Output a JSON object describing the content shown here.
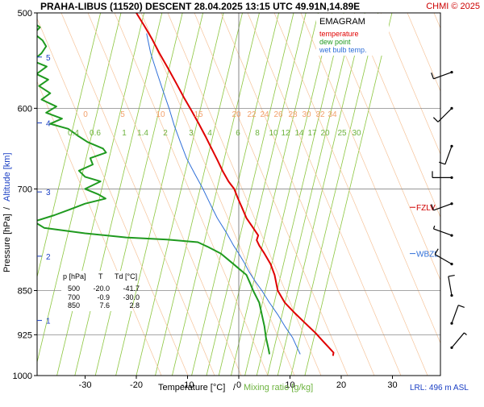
{
  "header": {
    "title": "PRAHA-LIBUS (11520)   DESCENT   28.04.2025 13:15 UTC  49.91N,14.89E",
    "copyright": "CHMI © 2025"
  },
  "legend": {
    "title": "EMAGRAM",
    "items": [
      {
        "label": "temperature",
        "color": "#e00000"
      },
      {
        "label": "dew point",
        "color": "#1f9a1f"
      },
      {
        "label": "wet bulb temp.",
        "color": "#2f6fd8"
      }
    ]
  },
  "axes": {
    "x_label_temp": "Temperature [°C]",
    "x_label_sep": "/",
    "x_label_mix": "Mixing ratio [g/kg]",
    "y_label_pressure": "Pressure [hPa]",
    "y_label_sep": "/",
    "y_label_alt": "Altitude [km]",
    "lrl": "LRL: 496 m ASL",
    "fzlv": "FZLV",
    "wbzl": "WBZL"
  },
  "table": {
    "headers": [
      "p [hPa]",
      "T",
      "Td [°C]"
    ],
    "rows": [
      [
        "500",
        "-20.0",
        "-41.7"
      ],
      [
        "700",
        "-0.9",
        "-30.0"
      ],
      [
        "850",
        "7.6",
        "2.8"
      ]
    ]
  },
  "chart_data": {
    "type": "line",
    "title": "PRAHA-LIBUS (11520)   DESCENT   28.04.2025 13:15 UTC  49.91N,14.89E",
    "xlabel": "Temperature [°C]  /  Mixing ratio [g/kg]",
    "ylabel": "Pressure [hPa]  /  Altitude [km]",
    "xlim": [
      -40,
      32
    ],
    "ylim": [
      1000,
      500
    ],
    "y_log": true,
    "x_ticks": [
      -30,
      -20,
      -10,
      0,
      10,
      20,
      30
    ],
    "y_ticks": [
      500,
      600,
      700,
      850,
      925,
      1000
    ],
    "altitude_ticks": [
      {
        "km": 5,
        "p": 544
      },
      {
        "km": 4,
        "p": 617
      },
      {
        "km": 3,
        "p": 704
      },
      {
        "km": 2,
        "p": 796
      },
      {
        "km": 1,
        "p": 900
      }
    ],
    "mixing_ratio_labels": [
      "0.4",
      "0.6",
      "1",
      "1.4",
      "2",
      "3",
      "4",
      "6",
      "8",
      "10",
      "12",
      "14",
      "17",
      "20",
      "25",
      "30"
    ],
    "potential_temp_labels": [
      "0",
      "5",
      "10",
      "15",
      "20",
      "22",
      "24",
      "26",
      "28",
      "30",
      "32",
      "34"
    ],
    "markers": [
      {
        "name": "FZLV",
        "p": 725
      },
      {
        "name": "WBZL",
        "p": 792
      }
    ],
    "series": [
      {
        "name": "temperature",
        "color": "#e00000",
        "points": [
          [
            -20.0,
            500
          ],
          [
            -18.5,
            512
          ],
          [
            -17,
            525
          ],
          [
            -15.5,
            540
          ],
          [
            -13.8,
            556
          ],
          [
            -12.2,
            572
          ],
          [
            -10.7,
            588
          ],
          [
            -9.2,
            603
          ],
          [
            -7.8,
            618
          ],
          [
            -6.5,
            633
          ],
          [
            -5.3,
            648
          ],
          [
            -4.2,
            662
          ],
          [
            -3.1,
            677
          ],
          [
            -2.0,
            690
          ],
          [
            -0.9,
            700
          ],
          [
            -0.2,
            712
          ],
          [
            0.6,
            725
          ],
          [
            1.5,
            740
          ],
          [
            2.8,
            754
          ],
          [
            3.8,
            765
          ],
          [
            3.5,
            772
          ],
          [
            4.0,
            780
          ],
          [
            5.0,
            792
          ],
          [
            6.2,
            808
          ],
          [
            7.0,
            825
          ],
          [
            7.6,
            850
          ],
          [
            9.0,
            870
          ],
          [
            11.0,
            888
          ],
          [
            13.0,
            905
          ],
          [
            15.0,
            922
          ],
          [
            16.5,
            937
          ],
          [
            17.5,
            947
          ],
          [
            18.5,
            957
          ],
          [
            18.4,
            963
          ]
        ]
      },
      {
        "name": "dew point",
        "color": "#1f9a1f",
        "points": [
          [
            -41.7,
            500
          ],
          [
            -40.5,
            508
          ],
          [
            -38.8,
            514
          ],
          [
            -40.0,
            520
          ],
          [
            -38.3,
            527
          ],
          [
            -37.6,
            533
          ],
          [
            -38.5,
            540
          ],
          [
            -40.2,
            548
          ],
          [
            -37.5,
            554
          ],
          [
            -39.5,
            562
          ],
          [
            -37.2,
            568
          ],
          [
            -39.0,
            575
          ],
          [
            -36.8,
            583
          ],
          [
            -38.5,
            590
          ],
          [
            -35.6,
            598
          ],
          [
            -37.6,
            605
          ],
          [
            -34.5,
            612
          ],
          [
            -36.8,
            618
          ],
          [
            -33.3,
            624
          ],
          [
            -31.5,
            632
          ],
          [
            -29.5,
            640
          ],
          [
            -26.5,
            648
          ],
          [
            -25.9,
            653
          ],
          [
            -29.0,
            660
          ],
          [
            -28.5,
            668
          ],
          [
            -31.2,
            676
          ],
          [
            -30.0,
            684
          ],
          [
            -27.0,
            690
          ],
          [
            -30.0,
            700
          ],
          [
            -27.5,
            707
          ],
          [
            -26.0,
            713
          ],
          [
            -30.0,
            720
          ],
          [
            -33.0,
            728
          ],
          [
            -36.0,
            736
          ],
          [
            -40.0,
            745
          ],
          [
            -38.0,
            754
          ],
          [
            -30.0,
            762
          ],
          [
            -22.0,
            768
          ],
          [
            -14.0,
            771
          ],
          [
            -8.0,
            775
          ],
          [
            -6.0,
            782
          ],
          [
            -3.5,
            792
          ],
          [
            -1.5,
            805
          ],
          [
            0.0,
            815
          ],
          [
            1.5,
            825
          ],
          [
            2.2,
            838
          ],
          [
            2.8,
            850
          ],
          [
            4.0,
            870
          ],
          [
            4.5,
            890
          ],
          [
            5.0,
            910
          ],
          [
            5.3,
            930
          ],
          [
            5.8,
            950
          ],
          [
            6.0,
            960
          ]
        ]
      },
      {
        "name": "wet bulb temp.",
        "color": "#2f6fd8",
        "points": [
          [
            -18,
            520
          ],
          [
            -17.2,
            540
          ],
          [
            -16.0,
            560
          ],
          [
            -14.8,
            580
          ],
          [
            -13.6,
            600
          ],
          [
            -12.6,
            620
          ],
          [
            -11.4,
            640
          ],
          [
            -10.2,
            660
          ],
          [
            -8.6,
            680
          ],
          [
            -7.0,
            700
          ],
          [
            -5.6,
            720
          ],
          [
            -4.2,
            740
          ],
          [
            -2.5,
            760
          ],
          [
            -1.0,
            780
          ],
          [
            0.0,
            792
          ],
          [
            1.0,
            805
          ],
          [
            2.0,
            820
          ],
          [
            3.2,
            835
          ],
          [
            4.5,
            850
          ],
          [
            6.0,
            870
          ],
          [
            7.6,
            890
          ],
          [
            9.0,
            910
          ],
          [
            10.5,
            930
          ],
          [
            11.5,
            950
          ],
          [
            12.0,
            960
          ]
        ]
      }
    ],
    "wind_barbs": [
      {
        "p": 560,
        "dir": 250,
        "speed": 10
      },
      {
        "p": 600,
        "dir": 225,
        "speed": 10
      },
      {
        "p": 645,
        "dir": 200,
        "speed": 10
      },
      {
        "p": 685,
        "dir": 270,
        "speed": 10
      },
      {
        "p": 720,
        "dir": 250,
        "speed": 10
      },
      {
        "p": 765,
        "dir": 290,
        "speed": 5
      },
      {
        "p": 808,
        "dir": 300,
        "speed": 10
      },
      {
        "p": 858,
        "dir": 350,
        "speed": 10
      },
      {
        "p": 905,
        "dir": 20,
        "speed": 10
      },
      {
        "p": 948,
        "dir": 40,
        "speed": 5
      }
    ]
  }
}
